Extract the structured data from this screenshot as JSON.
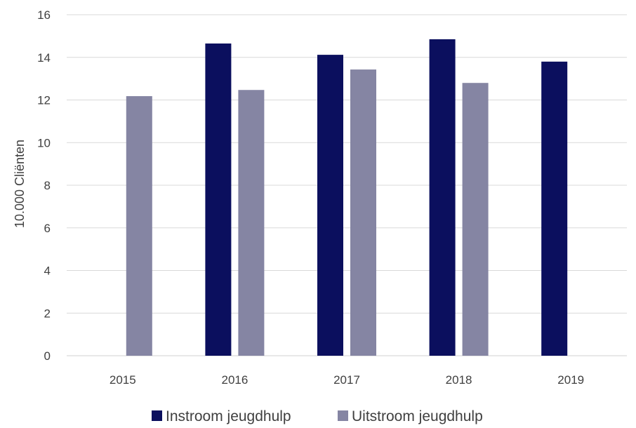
{
  "chart_data": {
    "type": "bar",
    "title": "",
    "xlabel": "",
    "ylabel": "10.000 Cliënten",
    "ylim": [
      0,
      16
    ],
    "yticks": [
      0,
      2,
      4,
      6,
      8,
      10,
      12,
      14,
      16
    ],
    "categories": [
      "2015",
      "2016",
      "2017",
      "2018",
      "2019"
    ],
    "grid": "horizontal",
    "legend": "bottom",
    "series": [
      {
        "name": "Instroom jeugdhulp",
        "color": "#0b0f5e",
        "values": [
          null,
          14.65,
          14.12,
          14.85,
          13.8
        ]
      },
      {
        "name": "Uitstroom jeugdhulp",
        "color": "#8585a3",
        "values": [
          12.18,
          12.47,
          13.43,
          12.8,
          null
        ]
      }
    ]
  }
}
